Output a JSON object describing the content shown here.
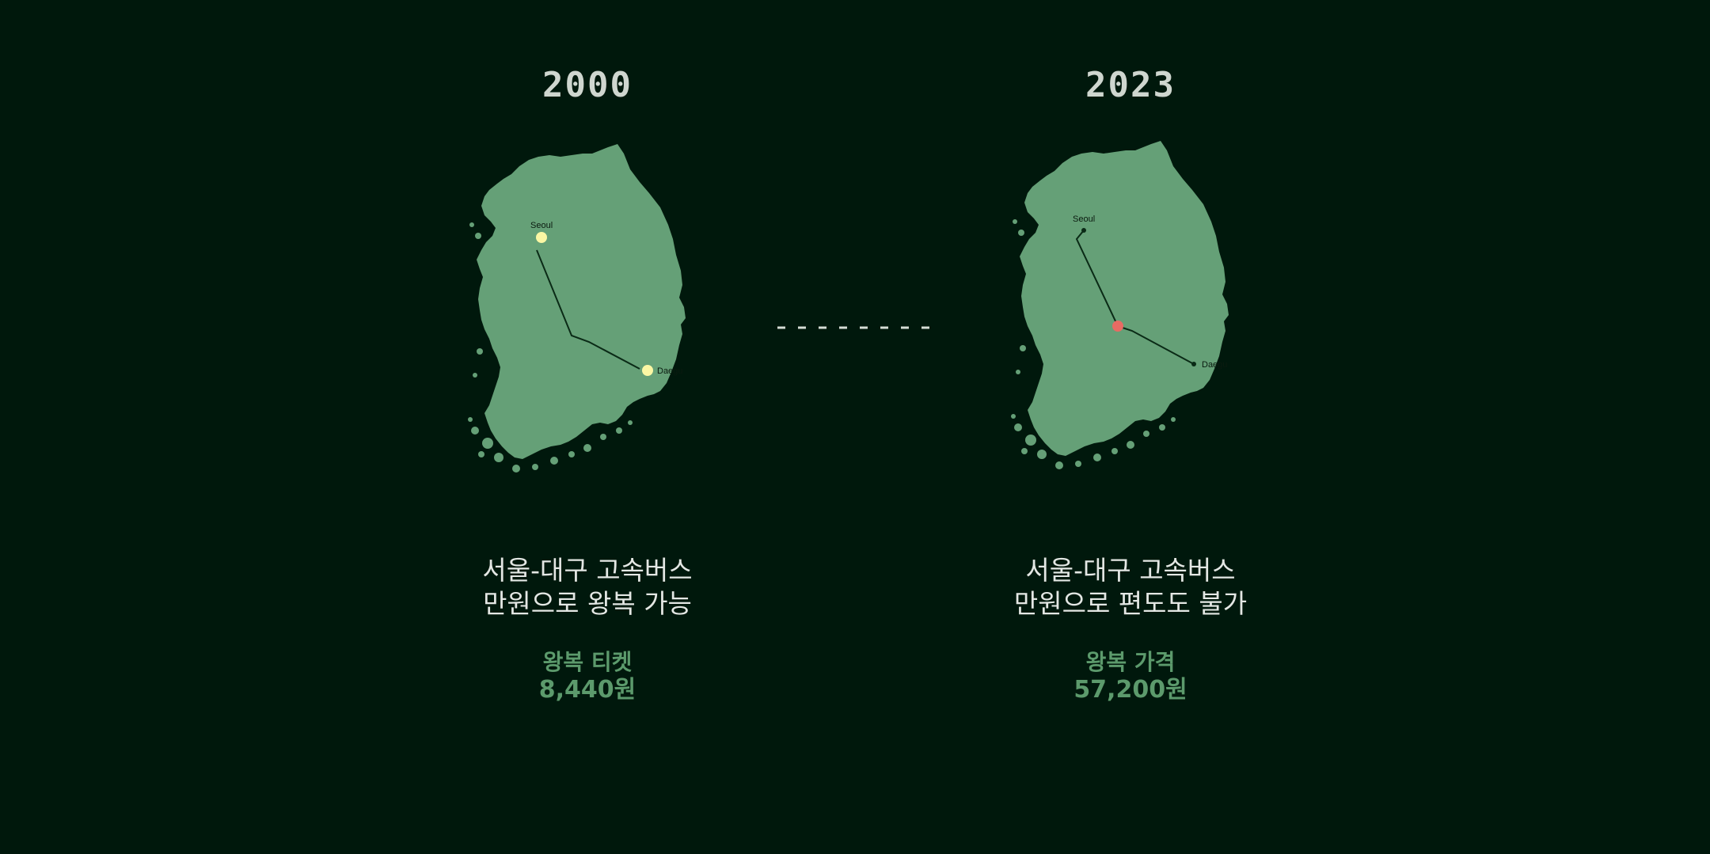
{
  "left": {
    "year": "2000",
    "seoul_label": "Seoul",
    "daegu_label": "Daegu",
    "headline_line1": "서울-대구 고속버스",
    "headline_line2": "만원으로 왕복 가능",
    "price_label": "왕복 티켓",
    "price_value": "8,440원"
  },
  "right": {
    "year": "2023",
    "seoul_label": "Seoul",
    "daegu_label": "Daegu",
    "headline_line1": "서울-대구 고속버스",
    "headline_line2": "만원으로 편도도 불가",
    "price_label": "왕복 가격",
    "price_value": "57,200원"
  },
  "colors": {
    "background": "#00180c",
    "land": "#65a077",
    "route": "#0a2a16",
    "city_marker_2000": "#fbf7a4",
    "breakpoint_marker_2023": "#e86b63",
    "price_text": "#5c9a6c",
    "dash": "#d5dcd5"
  }
}
